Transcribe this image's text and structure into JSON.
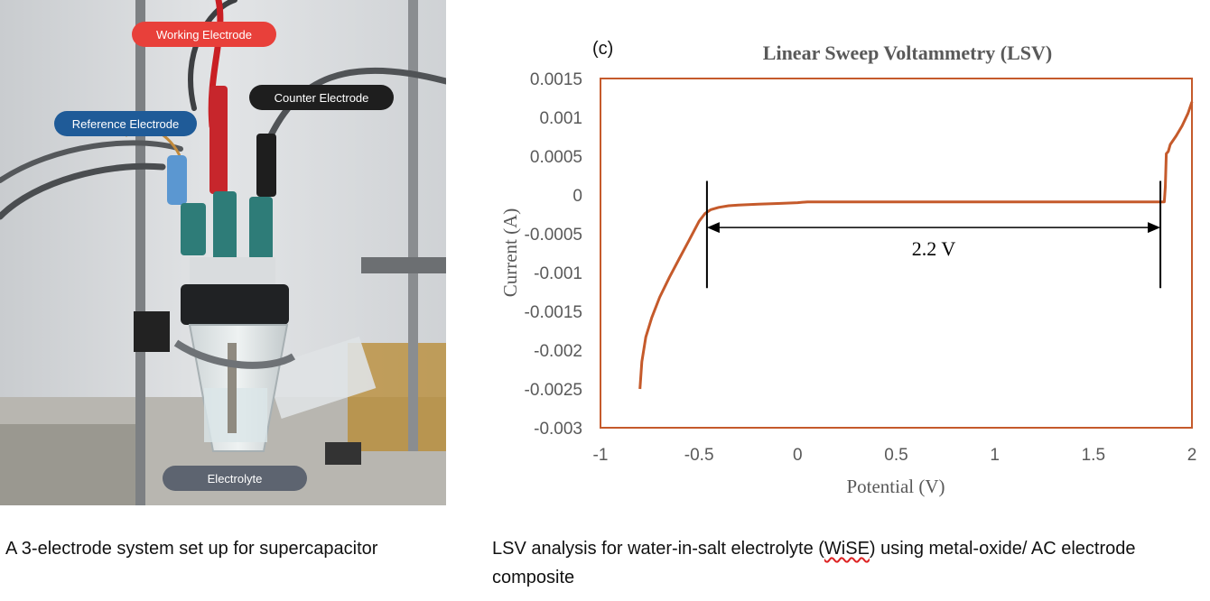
{
  "photo": {
    "labels": {
      "working": "Working Electrode",
      "counter": "Counter Electrode",
      "reference": "Reference Electrode",
      "electrolyte": "Electrolyte"
    },
    "colors": {
      "working_label": "#e8403a",
      "counter_label": "#1e1e1e",
      "reference_label": "#1f5b98",
      "electrolyte_label": "#5d6470"
    }
  },
  "captions": {
    "left": "A 3-electrode system set up for supercapacitor",
    "right_before": "LSV analysis for water-in-salt electrolyte (",
    "right_marked": "WiSE",
    "right_after": ") using metal-oxide/ AC electrode composite"
  },
  "chart_data": {
    "type": "line",
    "panel_label": "(c)",
    "title": "Linear Sweep Voltammetry (LSV)",
    "xlabel": "Potential (V)",
    "ylabel": "Current (A)",
    "xlim": [
      -1,
      2
    ],
    "ylim": [
      -0.003,
      0.0015
    ],
    "x_ticks": [
      -1,
      -0.5,
      0,
      0.5,
      1,
      1.5,
      2
    ],
    "x_tick_labels": [
      "-1",
      "-0.5",
      "0",
      "0.5",
      "1",
      "1.5",
      "2"
    ],
    "y_ticks": [
      0.0015,
      0.001,
      0.0005,
      0,
      -0.0005,
      -0.001,
      -0.0015,
      -0.002,
      -0.0025,
      -0.003
    ],
    "y_tick_labels": [
      "0.0015",
      "0.001",
      "0.0005",
      "0",
      "-0.0005",
      "-0.001",
      "-0.0015",
      "-0.002",
      "-0.0025",
      "-0.003"
    ],
    "grid": false,
    "line_color": "#c55a2b",
    "series": [
      {
        "x": [
          -0.8,
          -0.79,
          -0.77,
          -0.74,
          -0.7,
          -0.65,
          -0.6,
          -0.55,
          -0.5,
          -0.47,
          -0.44,
          -0.4,
          -0.35,
          -0.3,
          -0.2,
          -0.1,
          0.0,
          0.05,
          0.3,
          0.6,
          1.0,
          1.4,
          1.7,
          1.86,
          1.865,
          1.87,
          1.88,
          1.89,
          1.92,
          1.95,
          1.98,
          2.0
        ],
        "y": [
          -0.0025,
          -0.00215,
          -0.00183,
          -0.00158,
          -0.00132,
          -0.00106,
          -0.00082,
          -0.00058,
          -0.00034,
          -0.00024,
          -0.00019,
          -0.00016,
          -0.00014,
          -0.00013,
          -0.00012,
          -0.00011,
          -0.0001,
          -9e-05,
          -9e-05,
          -9e-05,
          -9e-05,
          -9e-05,
          -9e-05,
          -9e-05,
          0.0001,
          0.00053,
          0.00056,
          0.00065,
          0.00076,
          0.00089,
          0.00105,
          0.0012
        ]
      }
    ],
    "annotation": {
      "text": "2.2 V",
      "x_start": -0.46,
      "x_end": 1.84,
      "y_arrow": -0.00042,
      "marker_y_top": 0.00018,
      "marker_y_bottom": -0.0012
    }
  }
}
